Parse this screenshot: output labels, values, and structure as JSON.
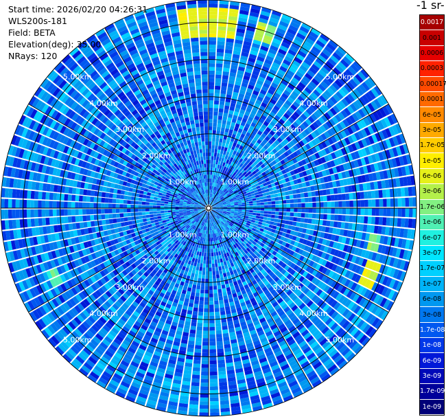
{
  "header": {
    "start_time": "Start time: 2026/02/20 04:26:31",
    "instrument": "WLS200s-181",
    "field": "Field: BETA",
    "elevation": "Elevation(deg): 35.00",
    "nrays": "NRays: 120"
  },
  "colorbar": {
    "title": "-1 sr-",
    "ticks": [
      {
        "label": "0.0017",
        "color": "#a60000"
      },
      {
        "label": "0.001",
        "color": "#c80000"
      },
      {
        "label": "0.0006",
        "color": "#e60000"
      },
      {
        "label": "0.0003",
        "color": "#ff2200"
      },
      {
        "label": "0.00017",
        "color": "#ff4a00"
      },
      {
        "label": "0.0001",
        "color": "#ff6a00"
      },
      {
        "label": "6e-05",
        "color": "#ff8a00"
      },
      {
        "label": "3e-05",
        "color": "#ffaa00"
      },
      {
        "label": "1.7e-05",
        "color": "#ffcc00"
      },
      {
        "label": "1e-05",
        "color": "#ffee00"
      },
      {
        "label": "6e-06",
        "color": "#e6f01a"
      },
      {
        "label": "3e-06",
        "color": "#b4f04a"
      },
      {
        "label": "1.7e-06",
        "color": "#82f082"
      },
      {
        "label": "1e-06",
        "color": "#50f0b4"
      },
      {
        "label": "6e-07",
        "color": "#20f0e0"
      },
      {
        "label": "3e-07",
        "color": "#00e6ff"
      },
      {
        "label": "1.7e-07",
        "color": "#00d0ff"
      },
      {
        "label": "1e-07",
        "color": "#00b4f8"
      },
      {
        "label": "6e-08",
        "color": "#0098f0"
      },
      {
        "label": "3e-08",
        "color": "#0078f0"
      },
      {
        "label": "1.7e-08",
        "color": "#0058f0"
      },
      {
        "label": "1e-08",
        "color": "#0038e8"
      },
      {
        "label": "6e-09",
        "color": "#0018d8"
      },
      {
        "label": "3e-09",
        "color": "#0008b8"
      },
      {
        "label": "1.7e-09",
        "color": "#00009a"
      },
      {
        "label": "1e-09",
        "color": "#000078"
      }
    ]
  },
  "chart_data": {
    "type": "heatmap",
    "projection": "polar",
    "field": "BETA",
    "elevation_deg": 35.0,
    "nrays": 120,
    "max_range_km": 5.6,
    "range_rings_km": [
      1,
      2,
      3,
      4,
      5
    ],
    "ring_labels": [
      "1.00km",
      "2.00km",
      "3.00km",
      "4.00km",
      "5.00km"
    ],
    "colorscale": "log",
    "value_range": [
      1e-09,
      0.0017
    ],
    "dominant_value_range": [
      1e-08,
      1e-07
    ],
    "enhanced_regions": [
      {
        "azimuth_deg": [
          352,
          8
        ],
        "range_km": [
          4.6,
          5.4
        ],
        "value": 6e-06
      },
      {
        "azimuth_deg": [
          15,
          22
        ],
        "range_km": [
          4.7,
          5.2
        ],
        "value": 3e-06
      },
      {
        "azimuth_deg": [
          100,
          104
        ],
        "range_km": [
          4.4,
          4.7
        ],
        "value": 1.7e-06
      },
      {
        "azimuth_deg": [
          107,
          117
        ],
        "range_km": [
          4.5,
          4.9
        ],
        "value": 6e-06
      },
      {
        "azimuth_deg": [
          244,
          249
        ],
        "range_km": [
          4.4,
          4.7
        ],
        "value": 1e-06
      }
    ]
  }
}
